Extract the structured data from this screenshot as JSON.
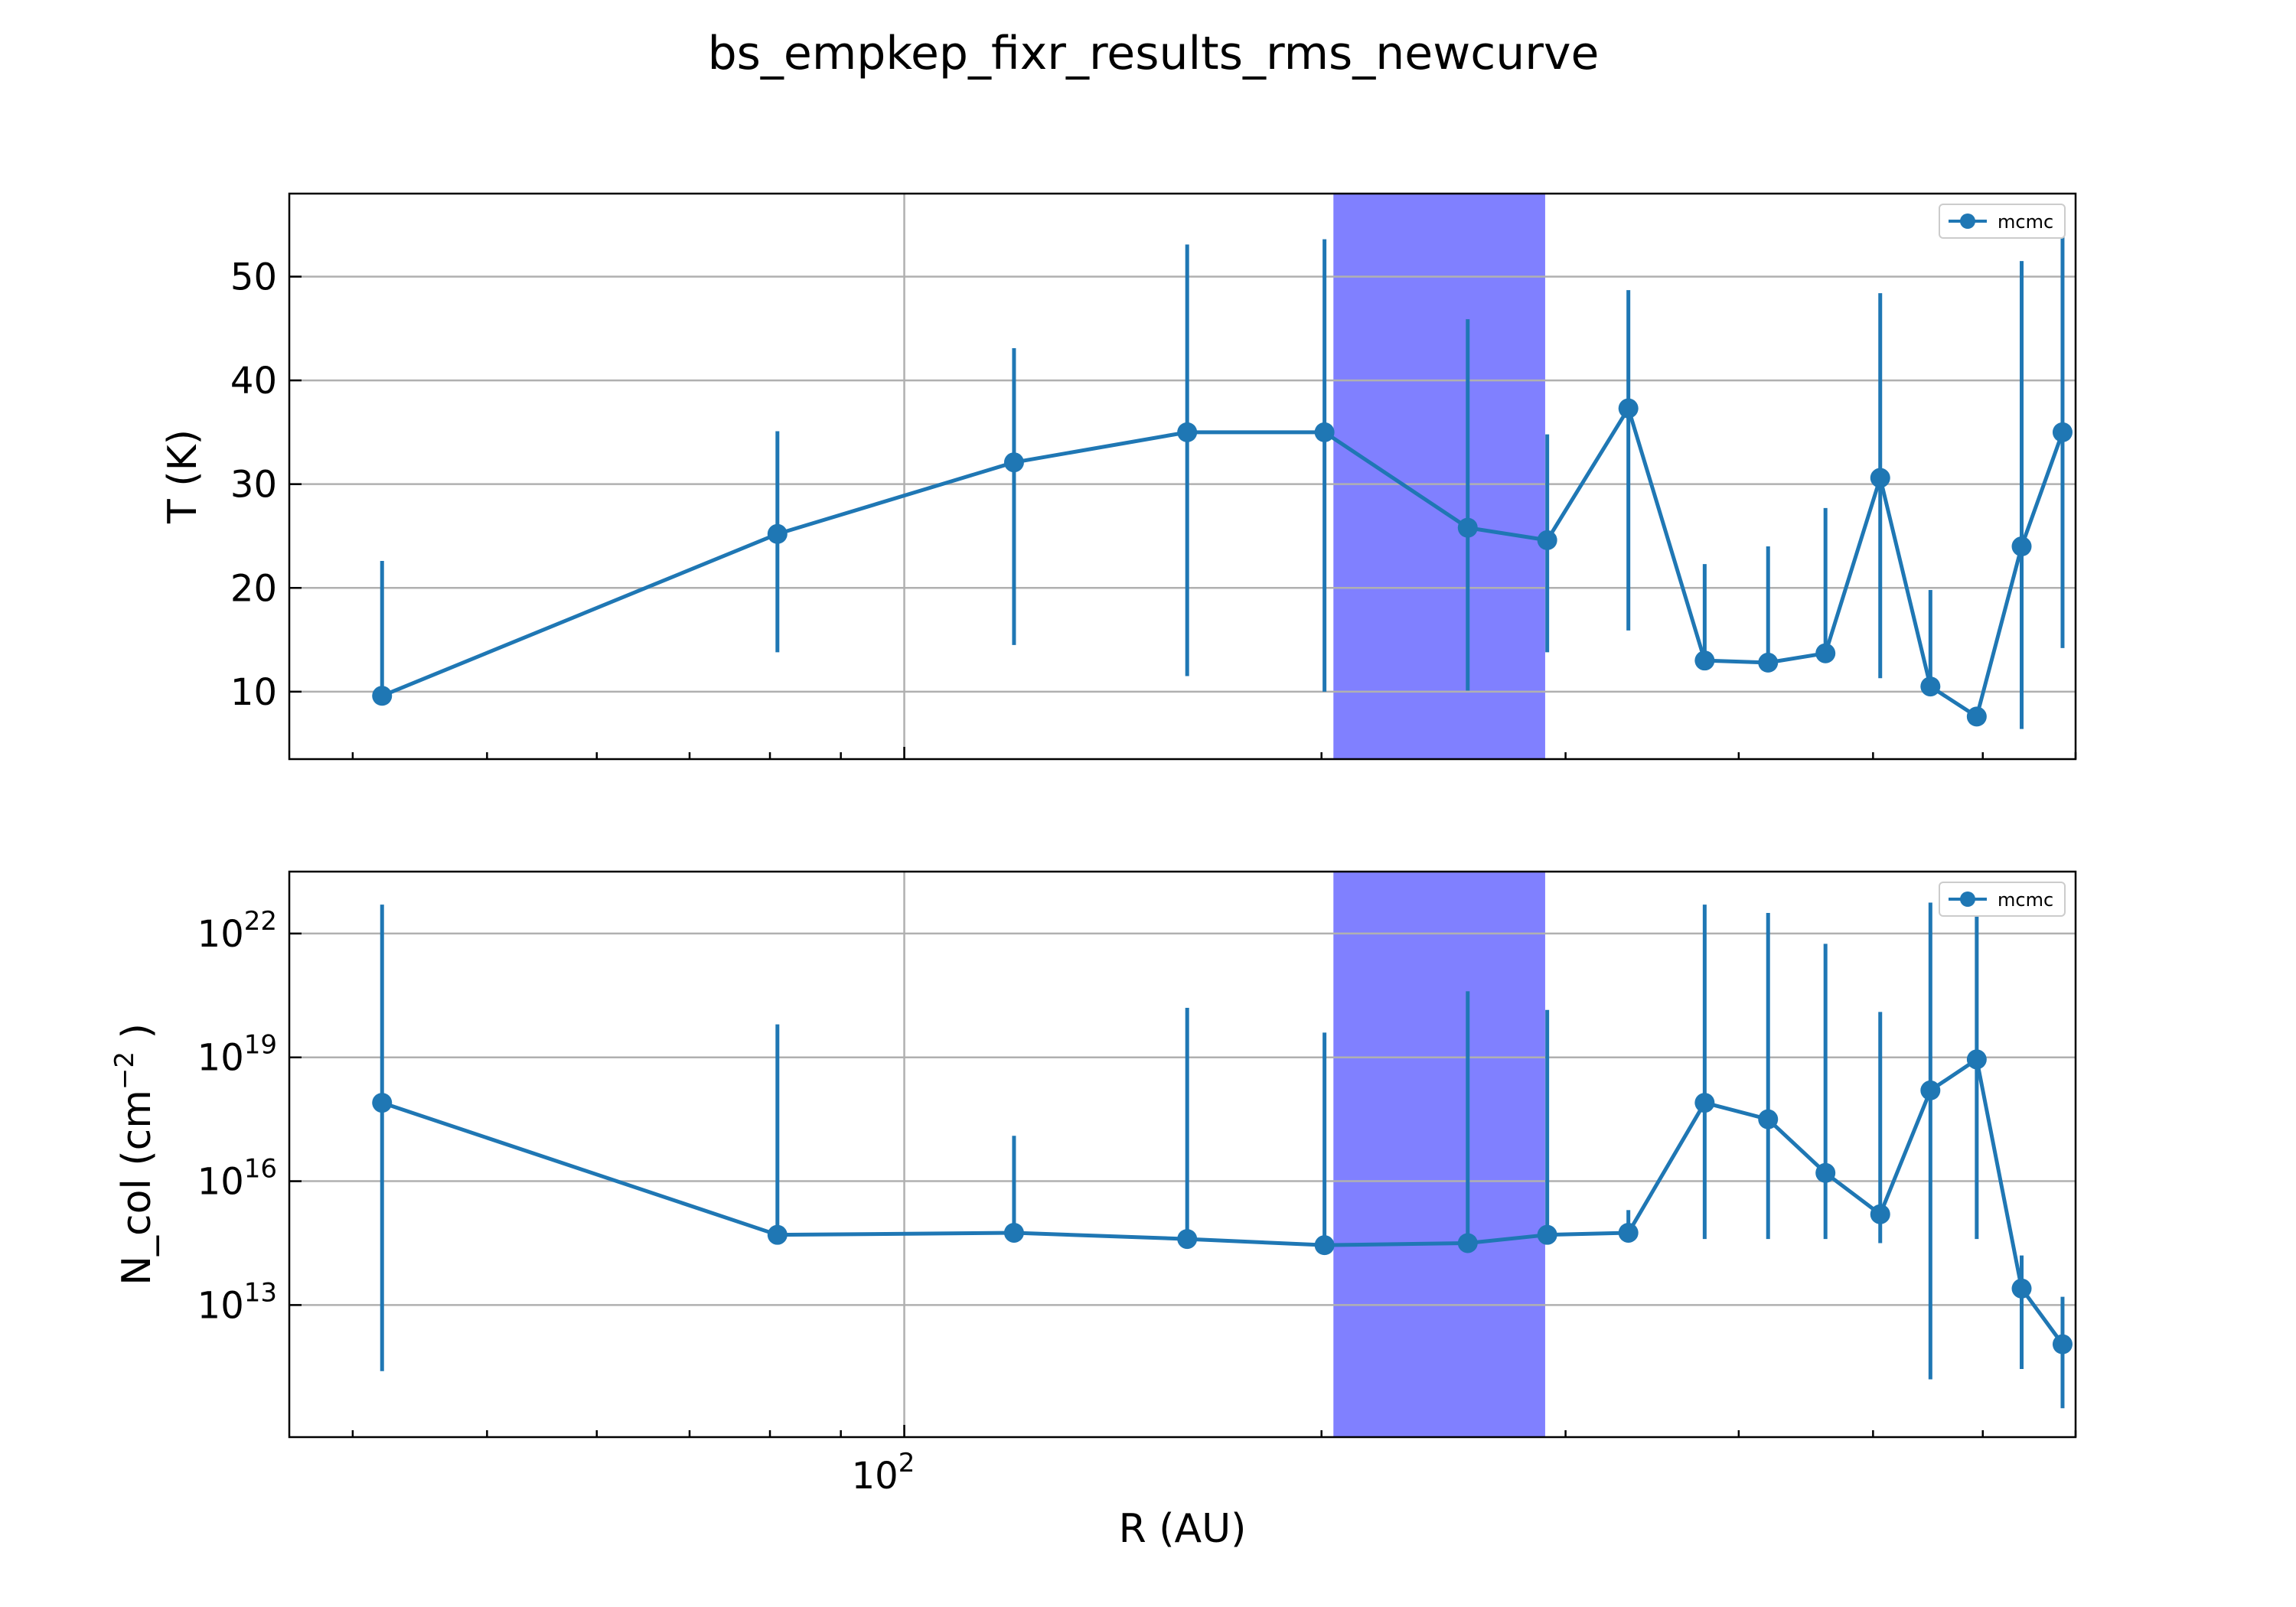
{
  "figure": {
    "title": "bs_empkep_fixr_results_rms_newcurve",
    "xlabel": "R (AU)",
    "x_tick_label": {
      "base": "10",
      "exp": "2"
    },
    "highlight_color": "#8080ff",
    "series_color": "#1f77b4"
  },
  "chart_data": [
    {
      "type": "line",
      "ylabel": "T (K)",
      "x_scale": "log",
      "y_scale": "linear",
      "xlim": [
        36,
        700
      ],
      "ylim": [
        3.5,
        58
      ],
      "grid": true,
      "legend": {
        "placement": "top-right",
        "entries": [
          "mcmc"
        ]
      },
      "highlight_band": {
        "x": [
          204,
          290
        ]
      },
      "y_ticks": [
        "10",
        "20",
        "30",
        "40",
        "50"
      ],
      "series": [
        {
          "name": "mcmc",
          "x": [
            42,
            81,
            120,
            160,
            201,
            255,
            291,
            333,
            378,
            420,
            462,
            506,
            550,
            594,
            640,
            685
          ],
          "y": [
            9.6,
            25.2,
            32.1,
            35.0,
            35.0,
            25.8,
            24.6,
            37.3,
            13.0,
            12.8,
            13.7,
            30.6,
            10.5,
            7.6,
            24.0,
            35.0
          ],
          "y_lower": [
            9.6,
            13.8,
            14.5,
            11.5,
            10.0,
            10.1,
            13.8,
            15.9,
            13.0,
            12.8,
            13.7,
            11.3,
            10.5,
            7.6,
            6.4,
            14.2
          ],
          "y_upper": [
            22.6,
            35.1,
            43.1,
            53.1,
            53.6,
            45.9,
            34.8,
            48.7,
            22.3,
            24.0,
            27.7,
            48.4,
            19.8,
            7.6,
            51.5,
            55.4
          ]
        }
      ]
    },
    {
      "type": "line",
      "ylabel": "N_col (cm^-2)",
      "ylabel_parts": {
        "prefix": "N_col (cm",
        "exp": "−2",
        "suffix": " )"
      },
      "x_scale": "log",
      "y_scale": "log",
      "xlim": [
        36,
        700
      ],
      "ylim_log10": [
        9.8,
        23.5
      ],
      "grid": true,
      "legend": {
        "placement": "top-right",
        "entries": [
          "mcmc"
        ]
      },
      "highlight_band": {
        "x": [
          204,
          290
        ]
      },
      "y_ticks": [
        {
          "base": "10",
          "exp": "13",
          "log": 13
        },
        {
          "base": "10",
          "exp": "16",
          "log": 16
        },
        {
          "base": "10",
          "exp": "19",
          "log": 19
        },
        {
          "base": "10",
          "exp": "22",
          "log": 22
        }
      ],
      "series": [
        {
          "name": "mcmc",
          "x": [
            42,
            81,
            120,
            160,
            201,
            255,
            291,
            333,
            378,
            420,
            462,
            506,
            550,
            594,
            640,
            685
          ],
          "log10_y": [
            17.9,
            14.7,
            14.75,
            14.6,
            14.45,
            14.5,
            14.7,
            14.75,
            17.9,
            17.5,
            16.2,
            15.2,
            18.2,
            18.95,
            13.4,
            12.05
          ],
          "log10_y_lower": [
            11.4,
            14.7,
            14.75,
            14.6,
            14.45,
            14.5,
            14.7,
            14.75,
            14.6,
            14.6,
            14.6,
            14.5,
            11.2,
            14.6,
            11.45,
            10.5
          ],
          "log10_y_upper": [
            22.7,
            19.8,
            17.1,
            20.2,
            19.6,
            20.6,
            20.15,
            15.3,
            22.7,
            22.5,
            21.75,
            20.1,
            22.75,
            23.0,
            14.2,
            13.2
          ]
        }
      ]
    }
  ]
}
